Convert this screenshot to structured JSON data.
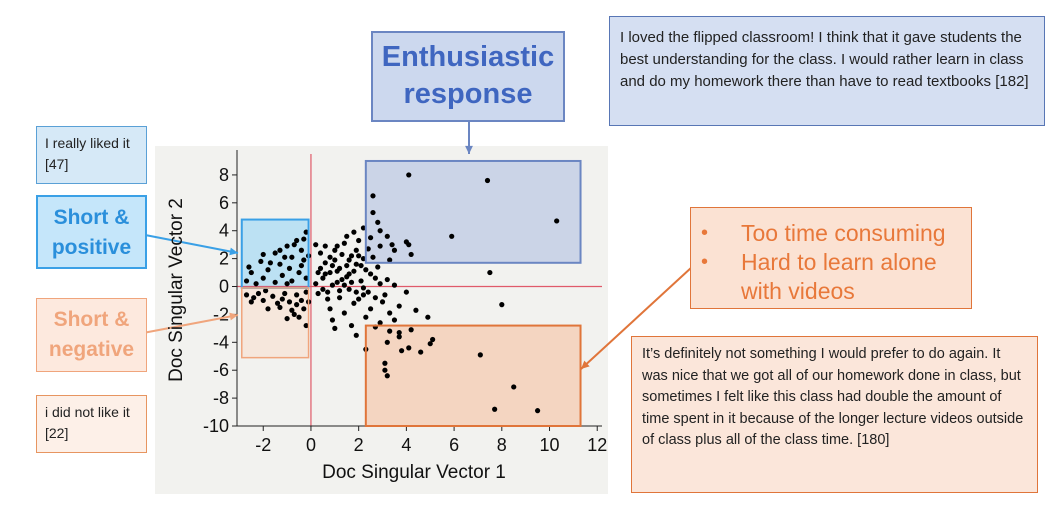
{
  "labels": {
    "enthusiastic": "Enthusiastic response",
    "short_positive": "Short & positive",
    "short_negative": "Short & negative"
  },
  "quotes": {
    "enthusiastic": "I loved the flipped classroom! I think that it gave students the best understanding for the class. I would rather learn in class and do my homework there than have to read textbooks [182]",
    "short_positive": "I really liked it [47]",
    "short_negative": "i did not like it [22]",
    "time_consuming": "It’s definitely not something I would prefer to do again. It was nice that we got all of our homework done in class, but sometimes I felt like this class had double the amount of time spent in it because of the longer lecture videos outside of class plus all of the class time. [180]"
  },
  "bullets": [
    "Too time consuming",
    "Hard to learn alone with videos"
  ],
  "colors": {
    "enthusiastic": "#6b86c2",
    "short_positive": "#3aa0e6",
    "short_negative": "#f0a57c",
    "time_consuming": "#e0753a",
    "points": "#000000",
    "zero_lines": "#e05a6a"
  },
  "chart_data": {
    "type": "scatter",
    "xlabel": "Doc Singular Vector 1",
    "ylabel": "Doc Singular Vector 2",
    "xlim": [
      -3.1,
      12.2
    ],
    "ylim": [
      -10,
      9.5
    ],
    "xticks": [
      -2,
      0,
      2,
      4,
      6,
      8,
      10,
      12
    ],
    "yticks": [
      -10,
      -8,
      -6,
      -4,
      -2,
      0,
      2,
      4,
      6,
      8
    ],
    "grid": false,
    "reference_lines": {
      "x": 0,
      "y": 0
    },
    "regions": [
      {
        "name": "Enthusiastic response",
        "x": [
          2.3,
          11.3
        ],
        "y": [
          1.7,
          9.0
        ]
      },
      {
        "name": "Short & positive",
        "x": [
          -2.9,
          -0.1
        ],
        "y": [
          -0.1,
          4.8
        ]
      },
      {
        "name": "Short & negative",
        "x": [
          -2.9,
          -0.1
        ],
        "y": [
          -5.1,
          -0.1
        ]
      },
      {
        "name": "Too time consuming",
        "x": [
          2.3,
          11.3
        ],
        "y": [
          -10.0,
          -2.8
        ]
      }
    ],
    "points": [
      [
        4.1,
        8.0
      ],
      [
        7.4,
        7.6
      ],
      [
        10.3,
        4.7
      ],
      [
        5.9,
        3.6
      ],
      [
        2.6,
        6.5
      ],
      [
        4.2,
        2.3
      ],
      [
        3.2,
        3.6
      ],
      [
        3.4,
        3.0
      ],
      [
        4.0,
        3.2
      ],
      [
        4.1,
        3.0
      ],
      [
        2.8,
        4.6
      ],
      [
        3.5,
        2.6
      ],
      [
        7.5,
        1.0
      ],
      [
        8.0,
        -1.3
      ],
      [
        2.6,
        5.3
      ],
      [
        2.9,
        4.0
      ],
      [
        3.3,
        -3.2
      ],
      [
        3.7,
        -3.3
      ],
      [
        4.2,
        -3.1
      ],
      [
        3.7,
        -3.6
      ],
      [
        3.2,
        -4.0
      ],
      [
        5.1,
        -3.8
      ],
      [
        5.0,
        -4.1
      ],
      [
        3.8,
        -4.6
      ],
      [
        4.6,
        -4.7
      ],
      [
        4.1,
        -4.4
      ],
      [
        7.1,
        -4.9
      ],
      [
        3.1,
        -5.5
      ],
      [
        3.1,
        -6.0
      ],
      [
        3.2,
        -6.4
      ],
      [
        8.5,
        -7.2
      ],
      [
        7.7,
        -8.8
      ],
      [
        9.5,
        -8.9
      ],
      [
        2.3,
        -4.5
      ],
      [
        2.2,
        -0.6
      ],
      [
        2.7,
        -0.8
      ],
      [
        3.0,
        -1.1
      ],
      [
        2.5,
        -1.6
      ],
      [
        3.3,
        -1.9
      ],
      [
        3.7,
        -1.4
      ],
      [
        2.9,
        -2.6
      ],
      [
        3.5,
        -2.4
      ],
      [
        2.7,
        -2.9
      ],
      [
        4.0,
        -0.4
      ],
      [
        4.4,
        -1.7
      ],
      [
        4.9,
        -2.2
      ],
      [
        1.0,
        -3.0
      ],
      [
        0.9,
        -2.4
      ],
      [
        1.7,
        -2.8
      ],
      [
        0.8,
        -1.6
      ],
      [
        1.9,
        -3.5
      ],
      [
        2.3,
        -2.2
      ],
      [
        0.5,
        0.6
      ],
      [
        0.8,
        1.0
      ],
      [
        1.2,
        1.3
      ],
      [
        1.5,
        0.7
      ],
      [
        1.9,
        1.6
      ],
      [
        2.2,
        2.0
      ],
      [
        0.4,
        2.4
      ],
      [
        1.0,
        2.6
      ],
      [
        1.4,
        3.1
      ],
      [
        1.7,
        2.2
      ],
      [
        2.0,
        3.3
      ],
      [
        2.4,
        2.7
      ],
      [
        0.6,
        1.7
      ],
      [
        1.1,
        0.3
      ],
      [
        1.6,
        -0.2
      ],
      [
        2.1,
        0.4
      ],
      [
        2.5,
        0.9
      ],
      [
        2.8,
        1.4
      ],
      [
        0.3,
        -0.5
      ],
      [
        0.7,
        -0.9
      ],
      [
        1.2,
        -0.8
      ],
      [
        1.8,
        -1.2
      ],
      [
        2.0,
        -0.9
      ],
      [
        1.4,
        -1.9
      ],
      [
        0.2,
        0.2
      ],
      [
        0.5,
        -0.2
      ],
      [
        0.9,
        0.1
      ],
      [
        1.3,
        0.5
      ],
      [
        1.8,
        1.1
      ],
      [
        2.3,
        1.2
      ],
      [
        1.0,
        1.9
      ],
      [
        1.5,
        1.5
      ],
      [
        0.8,
        2.1
      ],
      [
        1.3,
        2.3
      ],
      [
        1.9,
        2.6
      ],
      [
        2.6,
        2.1
      ],
      [
        2.4,
        -0.4
      ],
      [
        2.9,
        0.2
      ],
      [
        3.2,
        0.5
      ],
      [
        3.5,
        0.1
      ],
      [
        2.7,
        0.6
      ],
      [
        3.1,
        -0.6
      ],
      [
        0.6,
        0.9
      ],
      [
        1.1,
        1.1
      ],
      [
        1.6,
        0.9
      ],
      [
        2.1,
        1.5
      ],
      [
        0.4,
        1.3
      ],
      [
        0.9,
        1.5
      ],
      [
        1.4,
        0.1
      ],
      [
        1.9,
        -0.4
      ],
      [
        0.7,
        -0.4
      ],
      [
        1.2,
        -0.3
      ],
      [
        1.7,
        0.3
      ],
      [
        2.2,
        -0.1
      ],
      [
        0.3,
        1.0
      ],
      [
        1.6,
        1.9
      ],
      [
        2.0,
        2.2
      ],
      [
        1.1,
        2.9
      ],
      [
        1.8,
        3.9
      ],
      [
        2.2,
        4.2
      ],
      [
        1.5,
        3.6
      ],
      [
        2.5,
        3.5
      ],
      [
        0.2,
        3.0
      ],
      [
        0.6,
        2.9
      ],
      [
        2.9,
        2.9
      ],
      [
        3.3,
        1.9
      ],
      [
        -0.2,
        3.9
      ],
      [
        -0.6,
        3.3
      ],
      [
        -1.0,
        2.9
      ],
      [
        -0.4,
        2.6
      ],
      [
        -1.5,
        2.4
      ],
      [
        -0.8,
        2.1
      ],
      [
        -2.1,
        1.8
      ],
      [
        -1.3,
        1.6
      ],
      [
        -0.3,
        1.9
      ],
      [
        -0.9,
        1.3
      ],
      [
        -1.8,
        1.2
      ],
      [
        -2.5,
        1.0
      ],
      [
        -0.5,
        1.0
      ],
      [
        -1.2,
        0.8
      ],
      [
        -2.0,
        0.6
      ],
      [
        -2.7,
        0.4
      ],
      [
        -0.2,
        0.6
      ],
      [
        -0.8,
        0.4
      ],
      [
        -1.5,
        0.3
      ],
      [
        -2.3,
        0.2
      ],
      [
        -0.4,
        1.5
      ],
      [
        -1.1,
        2.1
      ],
      [
        -1.7,
        1.7
      ],
      [
        -2.6,
        1.4
      ],
      [
        -0.1,
        2.2
      ],
      [
        -0.7,
        3.0
      ],
      [
        -1.3,
        2.6
      ],
      [
        -0.3,
        3.4
      ],
      [
        -2.0,
        2.3
      ],
      [
        -1.0,
        0.2
      ],
      [
        -0.2,
        -0.4
      ],
      [
        -0.6,
        -0.6
      ],
      [
        -1.1,
        -0.5
      ],
      [
        -1.6,
        -0.7
      ],
      [
        -2.2,
        -0.5
      ],
      [
        -2.7,
        -0.6
      ],
      [
        -0.4,
        -1.0
      ],
      [
        -0.9,
        -1.1
      ],
      [
        -1.4,
        -1.2
      ],
      [
        -2.0,
        -1.0
      ],
      [
        -2.5,
        -1.1
      ],
      [
        -0.3,
        -1.6
      ],
      [
        -0.8,
        -1.7
      ],
      [
        -1.3,
        -1.5
      ],
      [
        -1.8,
        -1.6
      ],
      [
        -0.5,
        -2.2
      ],
      [
        -1.0,
        -2.3
      ],
      [
        -0.2,
        -2.8
      ],
      [
        -0.6,
        -1.3
      ],
      [
        -1.2,
        -0.9
      ],
      [
        -1.9,
        -0.3
      ],
      [
        -2.4,
        -0.8
      ],
      [
        -0.1,
        -1.1
      ],
      [
        -0.7,
        -2.0
      ]
    ]
  }
}
